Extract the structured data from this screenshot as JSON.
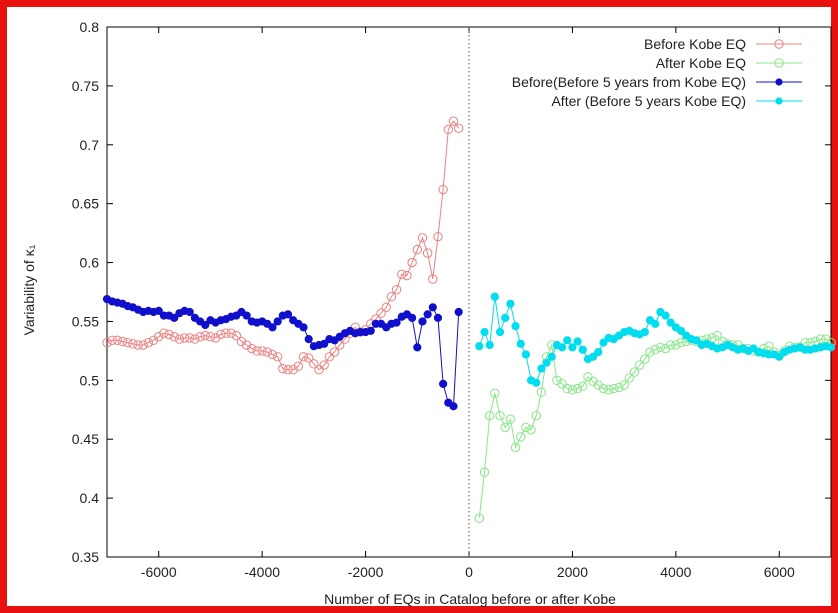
{
  "chart_data": {
    "type": "scatter",
    "xlabel": "Number of EQs in Catalog before or after  Kobe",
    "ylabel": "Variability of κ₁",
    "xlim": [
      -7000,
      7000
    ],
    "ylim": [
      0.35,
      0.8
    ],
    "xticks": [
      -6000,
      -4000,
      -2000,
      0,
      2000,
      4000,
      6000
    ],
    "yticks": [
      0.35,
      0.4,
      0.45,
      0.5,
      0.55,
      0.6,
      0.65,
      0.7,
      0.75,
      0.8
    ],
    "xtick_labels": [
      "-6000",
      "-4000",
      "-2000",
      "0",
      "2000",
      "4000",
      "6000"
    ],
    "ytick_labels": [
      "0.35",
      "0.4",
      "0.45",
      "0.5",
      "0.55",
      "0.6",
      "0.65",
      "0.7",
      "0.75",
      "0.8"
    ],
    "grid": false,
    "legend_position": "top-right",
    "vertical_marker_x": 0,
    "series": [
      {
        "name": "Before Kobe EQ",
        "color": "#f08080",
        "marker": "open-circle",
        "x": [
          -7000,
          -6900,
          -6800,
          -6700,
          -6600,
          -6500,
          -6400,
          -6300,
          -6200,
          -6100,
          -6000,
          -5900,
          -5800,
          -5700,
          -5600,
          -5500,
          -5400,
          -5300,
          -5200,
          -5100,
          -5000,
          -4900,
          -4800,
          -4700,
          -4600,
          -4500,
          -4400,
          -4300,
          -4200,
          -4100,
          -4000,
          -3900,
          -3800,
          -3700,
          -3600,
          -3500,
          -3400,
          -3300,
          -3200,
          -3100,
          -3000,
          -2900,
          -2800,
          -2700,
          -2600,
          -2500,
          -2400,
          -2300,
          -2200,
          -2100,
          -2000,
          -1900,
          -1800,
          -1700,
          -1600,
          -1500,
          -1400,
          -1300,
          -1200,
          -1100,
          -1000,
          -900,
          -800,
          -700,
          -600,
          -500,
          -400,
          -300,
          -200
        ],
        "y": [
          0.532,
          0.534,
          0.534,
          0.533,
          0.532,
          0.531,
          0.53,
          0.53,
          0.532,
          0.534,
          0.537,
          0.54,
          0.539,
          0.537,
          0.535,
          0.536,
          0.536,
          0.535,
          0.537,
          0.538,
          0.537,
          0.536,
          0.539,
          0.54,
          0.54,
          0.538,
          0.533,
          0.53,
          0.527,
          0.525,
          0.525,
          0.524,
          0.522,
          0.52,
          0.51,
          0.509,
          0.509,
          0.512,
          0.52,
          0.519,
          0.514,
          0.509,
          0.513,
          0.52,
          0.524,
          0.53,
          0.535,
          0.54,
          0.545,
          0.541,
          0.543,
          0.548,
          0.552,
          0.557,
          0.562,
          0.571,
          0.577,
          0.59,
          0.589,
          0.6,
          0.611,
          0.621,
          0.608,
          0.586,
          0.622,
          0.662,
          0.713,
          0.72,
          0.714
        ]
      },
      {
        "name": "After Kobe EQ",
        "color": "#88e888",
        "marker": "open-circle",
        "x": [
          200,
          300,
          400,
          500,
          600,
          700,
          800,
          900,
          1000,
          1100,
          1200,
          1300,
          1400,
          1500,
          1600,
          1700,
          1800,
          1900,
          2000,
          2100,
          2200,
          2300,
          2400,
          2500,
          2600,
          2700,
          2800,
          2900,
          3000,
          3100,
          3200,
          3300,
          3400,
          3500,
          3600,
          3700,
          3800,
          3900,
          4000,
          4100,
          4200,
          4300,
          4400,
          4500,
          4600,
          4700,
          4800,
          4900,
          5000,
          5100,
          5200,
          5300,
          5400,
          5500,
          5600,
          5700,
          5800,
          5900,
          6000,
          6100,
          6200,
          6300,
          6400,
          6500,
          6600,
          6700,
          6800,
          6900,
          7000
        ],
        "y": [
          0.383,
          0.422,
          0.47,
          0.489,
          0.47,
          0.46,
          0.467,
          0.443,
          0.452,
          0.46,
          0.458,
          0.47,
          0.49,
          0.52,
          0.53,
          0.5,
          0.497,
          0.493,
          0.492,
          0.493,
          0.495,
          0.503,
          0.499,
          0.496,
          0.493,
          0.492,
          0.493,
          0.494,
          0.496,
          0.502,
          0.507,
          0.513,
          0.518,
          0.524,
          0.526,
          0.528,
          0.527,
          0.53,
          0.53,
          0.532,
          0.533,
          0.534,
          0.533,
          0.534,
          0.535,
          0.536,
          0.538,
          0.533,
          0.531,
          0.53,
          0.53,
          0.527,
          0.527,
          0.525,
          0.524,
          0.527,
          0.529,
          0.524,
          0.521,
          0.525,
          0.529,
          0.528,
          0.528,
          0.532,
          0.532,
          0.533,
          0.535,
          0.535,
          0.532
        ]
      },
      {
        "name": "Before(Before 5 years from Kobe EQ)",
        "color": "#1010cc",
        "marker": "filled-circle",
        "x": [
          -7000,
          -6900,
          -6800,
          -6700,
          -6600,
          -6500,
          -6400,
          -6300,
          -6200,
          -6100,
          -6000,
          -5900,
          -5800,
          -5700,
          -5600,
          -5500,
          -5400,
          -5300,
          -5200,
          -5100,
          -5000,
          -4900,
          -4800,
          -4700,
          -4600,
          -4500,
          -4400,
          -4300,
          -4200,
          -4100,
          -4000,
          -3900,
          -3800,
          -3700,
          -3600,
          -3500,
          -3400,
          -3300,
          -3200,
          -3100,
          -3000,
          -2900,
          -2800,
          -2700,
          -2600,
          -2500,
          -2400,
          -2300,
          -2200,
          -2100,
          -2000,
          -1900,
          -1800,
          -1700,
          -1600,
          -1500,
          -1400,
          -1300,
          -1200,
          -1100,
          -1000,
          -900,
          -800,
          -700,
          -600,
          -500,
          -400,
          -300,
          -200
        ],
        "y": [
          0.569,
          0.567,
          0.566,
          0.565,
          0.563,
          0.562,
          0.56,
          0.558,
          0.559,
          0.558,
          0.559,
          0.555,
          0.555,
          0.553,
          0.557,
          0.559,
          0.558,
          0.553,
          0.55,
          0.547,
          0.551,
          0.549,
          0.551,
          0.552,
          0.554,
          0.555,
          0.558,
          0.555,
          0.55,
          0.549,
          0.55,
          0.548,
          0.545,
          0.55,
          0.555,
          0.556,
          0.551,
          0.548,
          0.545,
          0.535,
          0.529,
          0.53,
          0.531,
          0.535,
          0.534,
          0.537,
          0.54,
          0.542,
          0.54,
          0.541,
          0.541,
          0.542,
          0.548,
          0.548,
          0.545,
          0.548,
          0.549,
          0.554,
          0.556,
          0.553,
          0.528,
          0.55,
          0.556,
          0.562,
          0.553,
          0.497,
          0.481,
          0.478,
          0.558
        ]
      },
      {
        "name": "After (Before 5 years Kobe EQ)",
        "color": "#00ddee",
        "marker": "filled-circle",
        "x": [
          200,
          300,
          400,
          500,
          600,
          700,
          800,
          900,
          1000,
          1100,
          1200,
          1300,
          1400,
          1500,
          1600,
          1700,
          1800,
          1900,
          2000,
          2100,
          2200,
          2300,
          2400,
          2500,
          2600,
          2700,
          2800,
          2900,
          3000,
          3100,
          3200,
          3300,
          3400,
          3500,
          3600,
          3700,
          3800,
          3900,
          4000,
          4100,
          4200,
          4300,
          4400,
          4500,
          4600,
          4700,
          4800,
          4900,
          5000,
          5100,
          5200,
          5300,
          5400,
          5500,
          5600,
          5700,
          5800,
          5900,
          6000,
          6100,
          6200,
          6300,
          6400,
          6500,
          6600,
          6700,
          6800,
          6900,
          7000
        ],
        "y": [
          0.529,
          0.541,
          0.53,
          0.571,
          0.541,
          0.553,
          0.565,
          0.546,
          0.531,
          0.522,
          0.5,
          0.498,
          0.51,
          0.515,
          0.52,
          0.53,
          0.528,
          0.534,
          0.528,
          0.533,
          0.526,
          0.518,
          0.52,
          0.524,
          0.532,
          0.536,
          0.535,
          0.538,
          0.541,
          0.542,
          0.54,
          0.539,
          0.541,
          0.551,
          0.548,
          0.558,
          0.555,
          0.549,
          0.545,
          0.542,
          0.538,
          0.535,
          0.534,
          0.53,
          0.531,
          0.529,
          0.527,
          0.528,
          0.53,
          0.528,
          0.526,
          0.527,
          0.525,
          0.527,
          0.524,
          0.523,
          0.522,
          0.522,
          0.52,
          0.524,
          0.526,
          0.527,
          0.528,
          0.526,
          0.526,
          0.527,
          0.528,
          0.529,
          0.528
        ]
      }
    ]
  }
}
